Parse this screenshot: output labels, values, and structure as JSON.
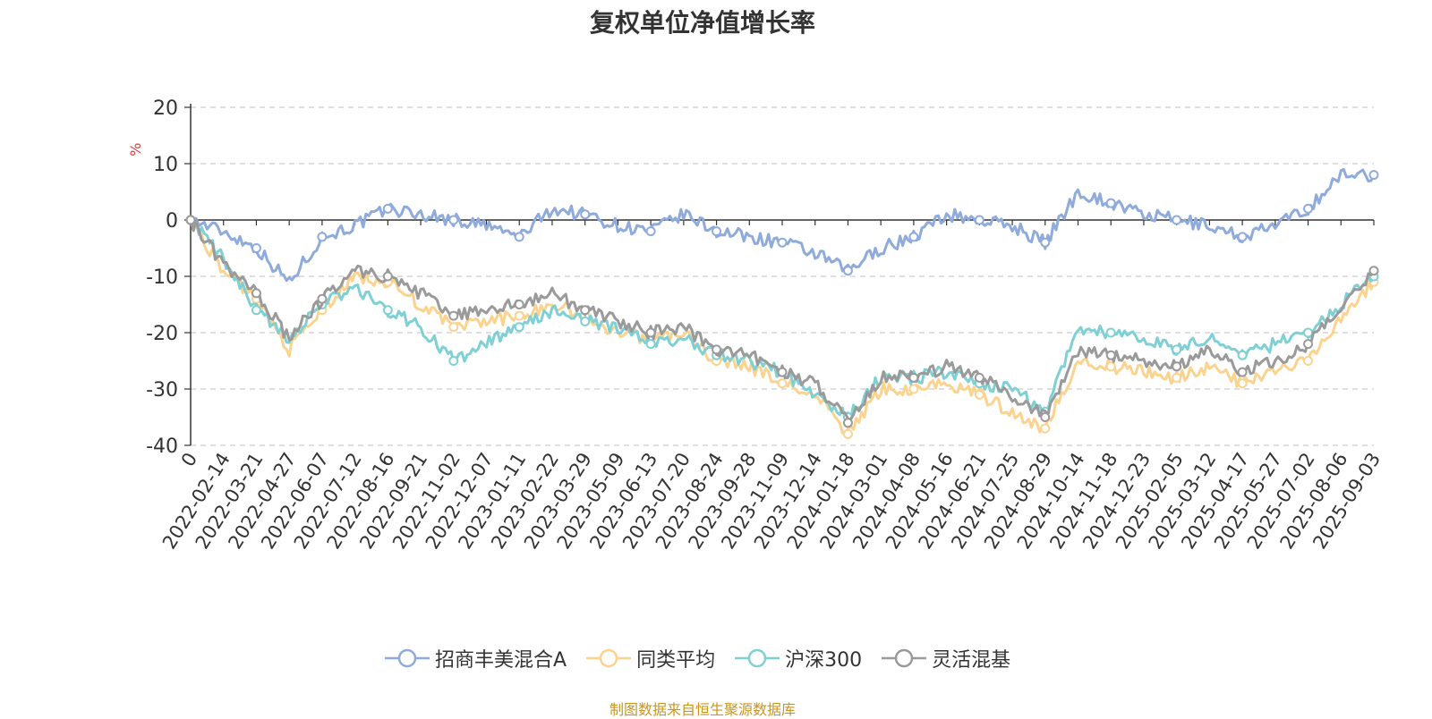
{
  "title": "复权单位净值增长率",
  "source_note": "制图数据来自恒生聚源数据库",
  "chart_data": {
    "type": "line",
    "title": "复权单位净值增长率",
    "ylabel": "%",
    "ylim": [
      -40,
      20
    ],
    "yticks": [
      20,
      10,
      0,
      -10,
      -20,
      -30,
      -40
    ],
    "grid": true,
    "legend_position": "bottom",
    "x_labels": [
      "0",
      "2022-02-14",
      "2022-03-21",
      "2022-04-27",
      "2022-06-07",
      "2022-07-12",
      "2022-08-16",
      "2022-09-21",
      "2022-11-02",
      "2022-12-07",
      "2023-01-11",
      "2023-02-22",
      "2023-03-29",
      "2023-05-09",
      "2023-06-13",
      "2023-07-20",
      "2023-08-24",
      "2023-09-28",
      "2023-11-09",
      "2023-12-14",
      "2024-01-18",
      "2024-03-01",
      "2024-04-08",
      "2024-05-16",
      "2024-06-21",
      "2024-07-25",
      "2024-08-29",
      "2024-10-14",
      "2024-11-18",
      "2024-12-23",
      "2025-02-05",
      "2025-03-12",
      "2025-04-17",
      "2025-05-27",
      "2025-07-02",
      "2025-08-06",
      "2025-09-03"
    ],
    "series": [
      {
        "name": "招商丰美混合A",
        "color": "#8fabdb",
        "values": [
          0,
          -2,
          -5,
          -11,
          -3,
          -1,
          2,
          1,
          0,
          -1,
          -3,
          2,
          1,
          -1,
          -2,
          1,
          -2,
          -3,
          -4,
          -6,
          -9,
          -5,
          -3,
          1,
          0,
          -1,
          -4,
          5,
          3,
          1,
          0,
          -1,
          -3,
          -1,
          2,
          8,
          8
        ]
      },
      {
        "name": "同类平均",
        "color": "#fbd38e",
        "values": [
          0,
          -9,
          -14,
          -23,
          -16,
          -10,
          -11,
          -15,
          -19,
          -18,
          -17,
          -15,
          -17,
          -20,
          -21,
          -20,
          -25,
          -26,
          -29,
          -31,
          -38,
          -30,
          -30,
          -29,
          -31,
          -34,
          -37,
          -25,
          -26,
          -27,
          -28,
          -26,
          -29,
          -27,
          -25,
          -17,
          -11
        ]
      },
      {
        "name": "沪深300",
        "color": "#7fd0d4",
        "values": [
          0,
          -7,
          -16,
          -21,
          -15,
          -12,
          -16,
          -19,
          -25,
          -22,
          -19,
          -16,
          -18,
          -19,
          -22,
          -21,
          -24,
          -25,
          -27,
          -31,
          -35,
          -28,
          -28,
          -27,
          -29,
          -30,
          -34,
          -19,
          -20,
          -21,
          -23,
          -21,
          -24,
          -22,
          -20,
          -15,
          -10
        ]
      },
      {
        "name": "灵活混基",
        "color": "#9a9a9a",
        "values": [
          0,
          -8,
          -13,
          -21,
          -14,
          -9,
          -10,
          -13,
          -17,
          -16,
          -15,
          -13,
          -16,
          -18,
          -20,
          -19,
          -23,
          -24,
          -27,
          -29,
          -36,
          -28,
          -28,
          -26,
          -28,
          -31,
          -35,
          -23,
          -24,
          -25,
          -26,
          -23,
          -27,
          -25,
          -22,
          -16,
          -9
        ]
      }
    ]
  }
}
